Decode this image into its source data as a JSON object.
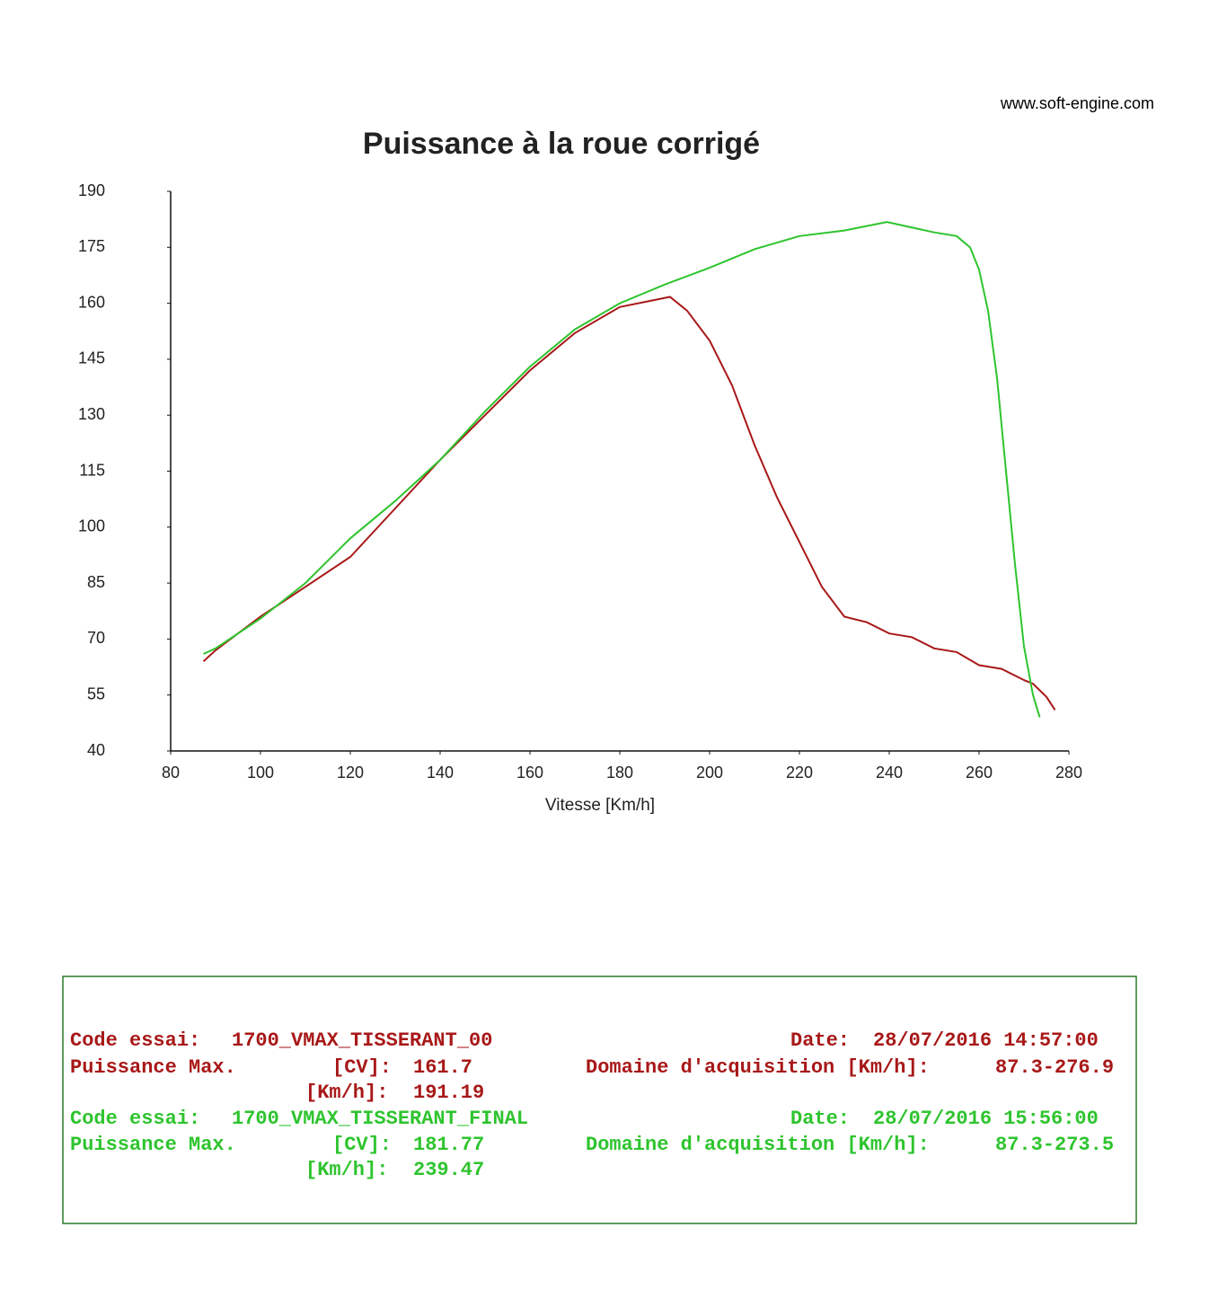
{
  "header": {
    "site": "www.soft-engine.com"
  },
  "chart_data": {
    "type": "line",
    "title": "Puissance à la roue corrigé",
    "x_label": "Vitesse [Km/h]",
    "xlim": [
      80,
      280
    ],
    "xticks": [
      80,
      100,
      120,
      140,
      160,
      180,
      200,
      220,
      240,
      260,
      280
    ],
    "ylim": [
      40,
      190
    ],
    "yticks": [
      40,
      55,
      70,
      85,
      100,
      115,
      130,
      145,
      160,
      175,
      190
    ],
    "grid": false,
    "series": [
      {
        "color": "#a81818",
        "x": [
          87.3,
          90,
          100,
          110,
          120,
          130,
          140,
          150,
          160,
          170,
          180,
          191.19,
          195,
          200,
          205,
          210,
          215,
          220,
          225,
          230,
          235,
          240,
          245,
          250,
          255,
          260,
          265,
          270,
          272,
          275,
          276.9
        ],
        "values": [
          64,
          67,
          76,
          84,
          92,
          105,
          118,
          130,
          142,
          152,
          159,
          161.7,
          158,
          150,
          138,
          122,
          108,
          96,
          84,
          76,
          74.5,
          71.5,
          70.5,
          67.5,
          66.5,
          63,
          62,
          59,
          58,
          54.5,
          51
        ]
      },
      {
        "color": "#2ec42e",
        "x": [
          87.3,
          90,
          100,
          110,
          120,
          130,
          140,
          150,
          160,
          170,
          180,
          190,
          200,
          210,
          220,
          230,
          239.47,
          250,
          255,
          258,
          260,
          262,
          264,
          266,
          268,
          270,
          272,
          273.5
        ],
        "values": [
          66,
          67.5,
          75.5,
          85,
          97,
          107,
          118,
          131,
          143,
          153,
          160,
          165,
          169.5,
          174.5,
          178,
          179.5,
          181.77,
          179,
          178,
          175,
          169,
          158,
          140,
          115,
          90,
          68,
          55,
          49
        ]
      }
    ]
  },
  "info_box": {
    "tests": [
      {
        "code_label": "Code essai:",
        "code": "1700_VMAX_TISSERANT_00",
        "date_label": "Date:",
        "date": "28/07/2016 14:57:00",
        "max_label": "Puissance Max.",
        "cv_label": "[CV]:",
        "cv": "161.7",
        "domain_label": "Domaine d'acquisition [Km/h]:",
        "domain": "87.3-276.9",
        "kmh_label": "[Km/h]:",
        "kmh": "191.19"
      },
      {
        "code_label": "Code essai:",
        "code": "1700_VMAX_TISSERANT_FINAL",
        "date_label": "Date:",
        "date": "28/07/2016 15:56:00",
        "max_label": "Puissance Max.",
        "cv_label": "[CV]:",
        "cv": "181.77",
        "domain_label": "Domaine d'acquisition [Km/h]:",
        "domain": "87.3-273.5",
        "kmh_label": "[Km/h]:",
        "kmh": "239.47"
      }
    ]
  }
}
